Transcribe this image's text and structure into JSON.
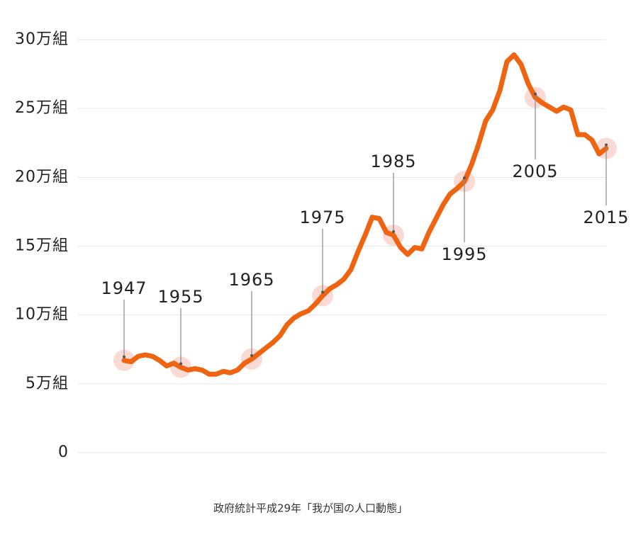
{
  "chart_data": {
    "type": "line",
    "x": [
      1947,
      1948,
      1949,
      1950,
      1951,
      1952,
      1953,
      1954,
      1955,
      1956,
      1957,
      1958,
      1959,
      1960,
      1961,
      1962,
      1963,
      1964,
      1965,
      1966,
      1967,
      1968,
      1969,
      1970,
      1971,
      1972,
      1973,
      1974,
      1975,
      1976,
      1977,
      1978,
      1979,
      1980,
      1981,
      1982,
      1983,
      1984,
      1985,
      1986,
      1987,
      1988,
      1989,
      1990,
      1991,
      1992,
      1993,
      1994,
      1995,
      1996,
      1997,
      1998,
      1999,
      2000,
      2001,
      2002,
      2003,
      2004,
      2005,
      2006,
      2007,
      2008,
      2009,
      2010,
      2011,
      2012,
      2013,
      2014,
      2015
    ],
    "values": [
      6.7,
      6.6,
      7.0,
      7.1,
      7.0,
      6.7,
      6.3,
      6.5,
      6.2,
      6.0,
      6.1,
      6.0,
      5.7,
      5.7,
      5.9,
      5.8,
      6.0,
      6.5,
      6.8,
      7.2,
      7.6,
      8.0,
      8.5,
      9.3,
      9.8,
      10.1,
      10.3,
      10.8,
      11.4,
      11.9,
      12.2,
      12.6,
      13.3,
      14.6,
      15.8,
      17.1,
      17.0,
      16.0,
      15.8,
      14.9,
      14.4,
      14.9,
      14.8,
      16.0,
      17.0,
      18.0,
      18.8,
      19.2,
      19.7,
      20.9,
      22.4,
      24.1,
      24.9,
      26.3,
      28.4,
      28.9,
      28.2,
      26.8,
      25.8,
      25.4,
      25.1,
      24.8,
      25.1,
      24.9,
      23.1,
      23.1,
      22.7,
      21.7,
      22.1
    ],
    "color": "#ef6410",
    "highlights": [
      1947,
      1955,
      1965,
      1975,
      1985,
      1995,
      2005,
      2015
    ],
    "ylim": [
      0,
      30
    ],
    "yticks": [
      0,
      {
        "value": 5,
        "label": "5万組"
      },
      {
        "value": 10,
        "label": "10万組"
      },
      {
        "value": 15,
        "label": "15万組"
      },
      {
        "value": 20,
        "label": "20万組"
      },
      {
        "value": 25,
        "label": "25万組"
      },
      {
        "value": 30,
        "label": "30万組"
      }
    ],
    "grid": true,
    "source": "政府統計平成29年「我が国の人口動態」"
  }
}
